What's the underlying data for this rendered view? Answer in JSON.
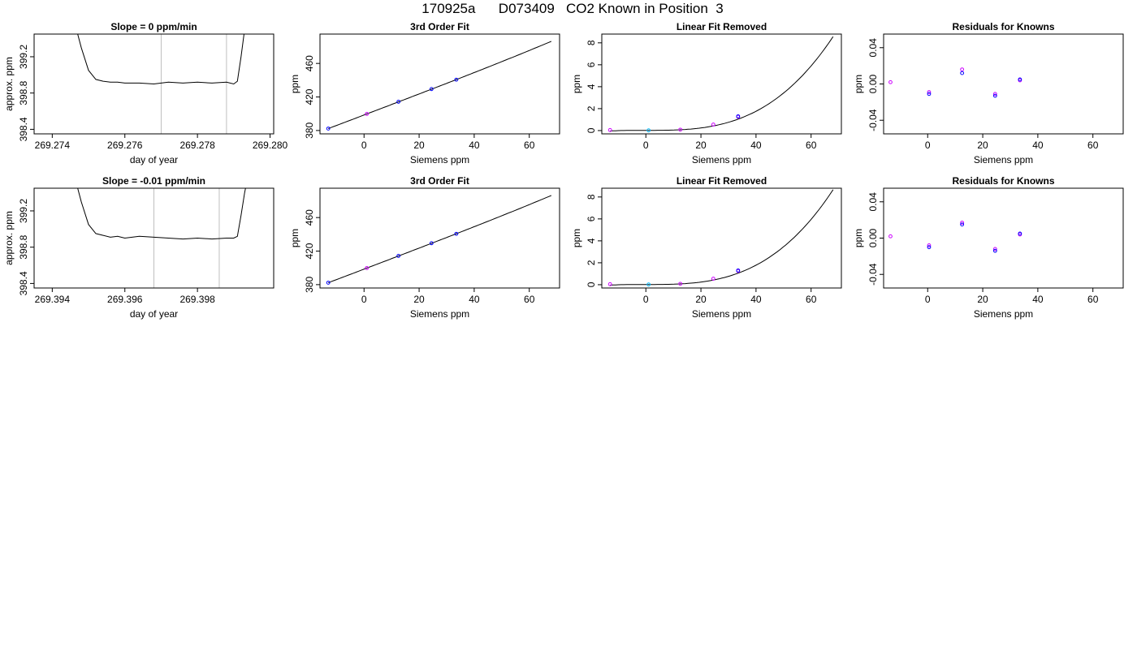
{
  "title": "170925a      D073409   CO2 Known in Position  3",
  "colors": {
    "purple": "#cc00ff",
    "blue": "#0000ff",
    "cyan": "#00bbff",
    "grey": "#bebebe",
    "line": "#000000"
  },
  "chart_data": [
    {
      "id": "time-1",
      "type": "line",
      "title": "Slope =  0  ppm/min",
      "xlabel": "day of year",
      "ylabel": "approx. ppm",
      "xlim": [
        269.2735,
        269.2801
      ],
      "ylim": [
        398.35,
        399.45
      ],
      "xticks": [
        "269.274",
        "269.276",
        "269.278",
        "269.280"
      ],
      "yticks": [
        "398.4",
        "398.8",
        "399.2"
      ],
      "vlines": [
        269.277,
        269.2788
      ],
      "x": [
        269.2746,
        269.2748,
        269.275,
        269.2752,
        269.2754,
        269.2756,
        269.2758,
        269.276,
        269.2764,
        269.2768,
        269.2772,
        269.2776,
        269.278,
        269.2784,
        269.2788,
        269.279,
        269.2791,
        269.2792,
        269.2793,
        269.2794
      ],
      "y": [
        399.6,
        399.3,
        399.05,
        398.95,
        398.93,
        398.92,
        398.92,
        398.91,
        398.91,
        398.9,
        398.92,
        398.91,
        398.92,
        398.91,
        398.92,
        398.9,
        398.93,
        399.2,
        399.5,
        399.7
      ]
    },
    {
      "id": "fit-1",
      "type": "scatter",
      "title": "3rd Order Fit",
      "xlabel": "Siemens ppm",
      "ylabel": "ppm",
      "xlim": [
        -16,
        71
      ],
      "ylim": [
        376,
        495
      ],
      "xticks": [
        "0",
        "20",
        "40",
        "60"
      ],
      "yticks": [
        "380",
        "420",
        "460"
      ],
      "curve": {
        "from": -13,
        "to": 68,
        "a": 398.5,
        "b": 1.25,
        "c": 0,
        "d": 9e-06
      },
      "points": [
        {
          "x": -13,
          "y": 382.3,
          "color": "blue"
        },
        {
          "x": 1,
          "y": 399.8,
          "color": "purple"
        },
        {
          "x": 12.5,
          "y": 414.3,
          "color": "blue"
        },
        {
          "x": 24.5,
          "y": 429.4,
          "color": "blue"
        },
        {
          "x": 33.5,
          "y": 440.6,
          "color": "blue"
        }
      ]
    },
    {
      "id": "lin-1",
      "type": "scatter",
      "title": "Linear Fit Removed",
      "xlabel": "Siemens ppm",
      "ylabel": "ppm",
      "xlim": [
        -16,
        71
      ],
      "ylim": [
        -0.3,
        8.8
      ],
      "xticks": [
        "0",
        "20",
        "40",
        "60"
      ],
      "yticks": [
        "0",
        "2",
        "4",
        "6",
        "8"
      ],
      "curve": {
        "from": -13,
        "to": 68,
        "a": 0.02,
        "b": 0,
        "c": 0,
        "d": 2.72e-05
      },
      "points": [
        {
          "x": -13,
          "y": 0.05,
          "color": "purple"
        },
        {
          "x": 1,
          "y": 0.02,
          "color": "cyan"
        },
        {
          "x": 12.5,
          "y": 0.08,
          "color": "purple"
        },
        {
          "x": 24.5,
          "y": 0.55,
          "color": "purple"
        },
        {
          "x": 33.5,
          "y": 1.25,
          "color": "purple"
        },
        {
          "x": 33.5,
          "y": 1.3,
          "color": "blue"
        }
      ]
    },
    {
      "id": "res-1",
      "type": "scatter",
      "title": "Residuals for Knowns",
      "xlabel": "Siemens ppm",
      "ylabel": "ppm",
      "xlim": [
        -16,
        71
      ],
      "ylim": [
        -0.055,
        0.055
      ],
      "xticks": [
        "0",
        "20",
        "40",
        "60"
      ],
      "yticks": [
        "-0.04",
        "0.00",
        "0.04"
      ],
      "points": [
        {
          "x": -13.5,
          "y": 0.002,
          "color": "purple"
        },
        {
          "x": 0.5,
          "y": -0.009,
          "color": "purple"
        },
        {
          "x": 0.5,
          "y": -0.011,
          "color": "blue"
        },
        {
          "x": 12.5,
          "y": 0.016,
          "color": "purple"
        },
        {
          "x": 12.5,
          "y": 0.012,
          "color": "blue"
        },
        {
          "x": 24.5,
          "y": -0.011,
          "color": "purple"
        },
        {
          "x": 24.5,
          "y": -0.013,
          "color": "blue"
        },
        {
          "x": 33.5,
          "y": 0.004,
          "color": "purple"
        },
        {
          "x": 33.5,
          "y": 0.005,
          "color": "blue"
        }
      ]
    },
    {
      "id": "time-2",
      "type": "line",
      "title": "Slope =  -0.01  ppm/min",
      "xlabel": "day of year",
      "ylabel": "approx. ppm",
      "xlim": [
        269.3935,
        269.4001
      ],
      "ylim": [
        398.35,
        399.45
      ],
      "xticks": [
        "269.394",
        "269.396",
        "269.398"
      ],
      "yticks": [
        "398.4",
        "398.8",
        "399.2"
      ],
      "vlines": [
        269.3968,
        269.3986
      ],
      "x": [
        269.3946,
        269.3948,
        269.395,
        269.3952,
        269.3954,
        269.3956,
        269.3958,
        269.396,
        269.3964,
        269.3968,
        269.3972,
        269.3976,
        269.398,
        269.3984,
        269.3988,
        269.399,
        269.3991,
        269.3992,
        269.3993,
        269.3994
      ],
      "y": [
        399.6,
        399.3,
        399.05,
        398.95,
        398.93,
        398.91,
        398.92,
        398.9,
        398.92,
        398.91,
        398.9,
        398.89,
        398.9,
        398.89,
        398.9,
        398.9,
        398.92,
        399.15,
        399.4,
        399.6
      ]
    },
    {
      "id": "fit-2",
      "type": "scatter",
      "title": "3rd Order Fit",
      "xlabel": "Siemens ppm",
      "ylabel": "ppm",
      "xlim": [
        -16,
        71
      ],
      "ylim": [
        376,
        495
      ],
      "xticks": [
        "0",
        "20",
        "40",
        "60"
      ],
      "yticks": [
        "380",
        "420",
        "460"
      ],
      "curve": {
        "from": -13,
        "to": 68,
        "a": 398.5,
        "b": 1.25,
        "c": 0,
        "d": 9e-06
      },
      "points": [
        {
          "x": -13,
          "y": 382.3,
          "color": "blue"
        },
        {
          "x": 1,
          "y": 399.8,
          "color": "purple"
        },
        {
          "x": 12.5,
          "y": 414.3,
          "color": "blue"
        },
        {
          "x": 24.5,
          "y": 429.4,
          "color": "blue"
        },
        {
          "x": 33.5,
          "y": 440.6,
          "color": "blue"
        }
      ]
    },
    {
      "id": "lin-2",
      "type": "scatter",
      "title": "Linear Fit Removed",
      "xlabel": "Siemens ppm",
      "ylabel": "ppm",
      "xlim": [
        -16,
        71
      ],
      "ylim": [
        -0.3,
        8.8
      ],
      "xticks": [
        "0",
        "20",
        "40",
        "60"
      ],
      "yticks": [
        "0",
        "2",
        "4",
        "6",
        "8"
      ],
      "curve": {
        "from": -13,
        "to": 68,
        "a": 0.02,
        "b": 0,
        "c": 0,
        "d": 2.75e-05
      },
      "points": [
        {
          "x": -13,
          "y": 0.05,
          "color": "purple"
        },
        {
          "x": 1,
          "y": 0.02,
          "color": "cyan"
        },
        {
          "x": 12.5,
          "y": 0.08,
          "color": "purple"
        },
        {
          "x": 24.5,
          "y": 0.55,
          "color": "purple"
        },
        {
          "x": 33.5,
          "y": 1.25,
          "color": "purple"
        },
        {
          "x": 33.5,
          "y": 1.3,
          "color": "blue"
        }
      ]
    },
    {
      "id": "res-2",
      "type": "scatter",
      "title": "Residuals for Knowns",
      "xlabel": "Siemens ppm",
      "ylabel": "ppm",
      "xlim": [
        -16,
        71
      ],
      "ylim": [
        -0.055,
        0.055
      ],
      "xticks": [
        "0",
        "20",
        "40",
        "60"
      ],
      "yticks": [
        "-0.04",
        "0.00",
        "0.04"
      ],
      "points": [
        {
          "x": -13.5,
          "y": 0.002,
          "color": "purple"
        },
        {
          "x": 0.5,
          "y": -0.008,
          "color": "purple"
        },
        {
          "x": 0.5,
          "y": -0.01,
          "color": "blue"
        },
        {
          "x": 12.5,
          "y": 0.017,
          "color": "purple"
        },
        {
          "x": 12.5,
          "y": 0.015,
          "color": "blue"
        },
        {
          "x": 24.5,
          "y": -0.012,
          "color": "purple"
        },
        {
          "x": 24.5,
          "y": -0.014,
          "color": "blue"
        },
        {
          "x": 33.5,
          "y": 0.004,
          "color": "purple"
        },
        {
          "x": 33.5,
          "y": 0.005,
          "color": "blue"
        }
      ]
    }
  ]
}
